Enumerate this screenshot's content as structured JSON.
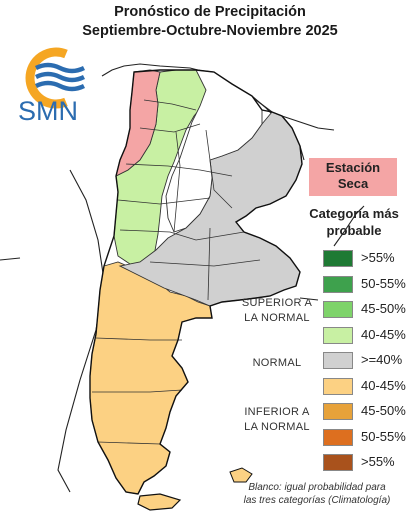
{
  "title_line1": "Pronóstico de Precipitación",
  "title_line2": "Septiembre-Octubre-Noviembre 2025",
  "logo_text": "SMN",
  "dry_label_line1": "Estación",
  "dry_label_line2": "Seca",
  "legend_title_line1": "Categoría más",
  "legend_title_line2": "probable",
  "category_labels": {
    "superior_line1": "SUPERIOR A",
    "superior_line2": "LA NORMAL",
    "normal": "NORMAL",
    "inferior_line1": "INFERIOR A",
    "inferior_line2": "LA NORMAL"
  },
  "legend": [
    {
      "label": ">55%",
      "color": "#1f7a34"
    },
    {
      "label": "50-55%",
      "color": "#3ea14d"
    },
    {
      "label": "45-50%",
      "color": "#7ed36a"
    },
    {
      "label": "40-45%",
      "color": "#c8f0a3"
    },
    {
      "label": ">=40%",
      "color": "#d0d0d0"
    },
    {
      "label": "40-45%",
      "color": "#fcd183"
    },
    {
      "label": "45-50%",
      "color": "#e7a23a"
    },
    {
      "label": "50-55%",
      "color": "#dd6f1f"
    },
    {
      "label": ">55%",
      "color": "#a9521c"
    }
  ],
  "footnote_line1": "Blanco: igual probabilidad para",
  "footnote_line2": "las tres categorías (Climatología)",
  "colors": {
    "dry": "#f4a5a5",
    "green_light": "#c8f0a3",
    "normal_gray": "#d0d0d0",
    "below_light": "#fcd183",
    "logo_orange": "#f5a623",
    "logo_blue": "#2b6cb0"
  }
}
